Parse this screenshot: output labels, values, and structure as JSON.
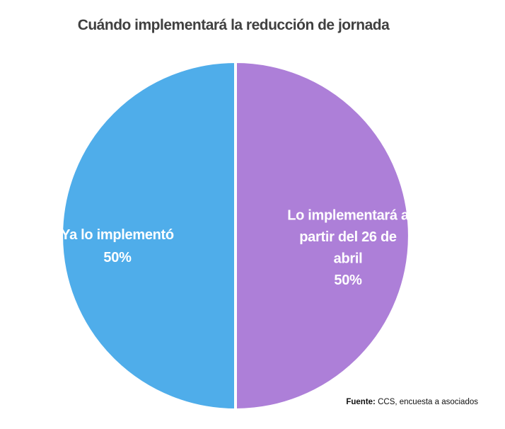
{
  "chart_data": {
    "type": "pie",
    "title": "Cuándo implementará la reducción de jornada",
    "slices": [
      {
        "name": "Ya lo implementó",
        "label_lines": [
          "Ya lo implementó"
        ],
        "value": 50,
        "value_label": "50%",
        "color": "#4fadea"
      },
      {
        "name": "Lo implementará a partir del 26 de abril",
        "label_lines": [
          "Lo implementará a",
          "partir del 26 de",
          "abril"
        ],
        "value": 50,
        "value_label": "50%",
        "color": "#ad7fd8"
      }
    ],
    "legend": "none"
  },
  "source": {
    "label": "Fuente:",
    "text": " CCS, encuesta a asociados"
  }
}
